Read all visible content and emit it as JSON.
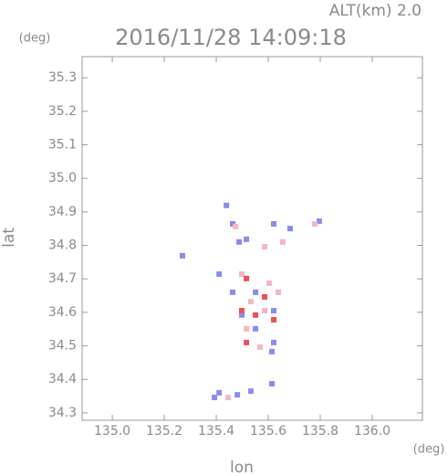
{
  "chart_data": {
    "type": "scatter",
    "title": "2016/11/28 14:09:18",
    "subtitle": "ALT(km) 2.0",
    "x_label": "lon",
    "y_label": "lat",
    "x_unit": "(deg)",
    "y_unit": "(deg)",
    "xlim": [
      134.884,
      136.193
    ],
    "ylim": [
      34.278,
      35.363
    ],
    "xticks": [
      {
        "value": 135,
        "label": "135.0"
      },
      135.2,
      135.4,
      135.6,
      135.8,
      {
        "value": 136,
        "label": "136.0"
      }
    ],
    "yticks": [
      34.3,
      34.4,
      34.5,
      34.6,
      34.7,
      34.8,
      34.9,
      {
        "value": 35,
        "label": "35.0"
      },
      35.1,
      35.2,
      35.3
    ],
    "series": [
      {
        "color": "#8a8cf0",
        "x": [
          135.439,
          135.463,
          135.488,
          135.516,
          135.621,
          135.684,
          135.796,
          135.411,
          135.463,
          135.498,
          135.551,
          135.621,
          135.614,
          135.411,
          135.481,
          135.533,
          135.614,
          135.393,
          135.27,
          135.551,
          135.621
        ],
        "y": [
          34.919,
          34.864,
          34.81,
          34.818,
          34.864,
          34.85,
          34.872,
          34.714,
          34.66,
          34.592,
          34.551,
          34.51,
          34.483,
          34.36,
          34.354,
          34.365,
          34.387,
          34.346,
          34.769,
          34.66,
          34.605
        ]
      },
      {
        "color": "#f4b6c0",
        "x": [
          135.586,
          135.656,
          135.779,
          135.498,
          135.533,
          135.586,
          135.516,
          135.568,
          135.639,
          135.474,
          135.604,
          135.446
        ],
        "y": [
          34.796,
          34.81,
          34.864,
          34.714,
          34.632,
          34.605,
          34.551,
          34.496,
          34.66,
          34.856,
          34.687,
          34.346
        ]
      },
      {
        "color": "#e8505a",
        "x": [
          135.516,
          135.498,
          135.586,
          135.551,
          135.516,
          135.621
        ],
        "y": [
          34.701,
          34.605,
          34.646,
          34.592,
          34.51,
          34.578
        ]
      }
    ]
  }
}
